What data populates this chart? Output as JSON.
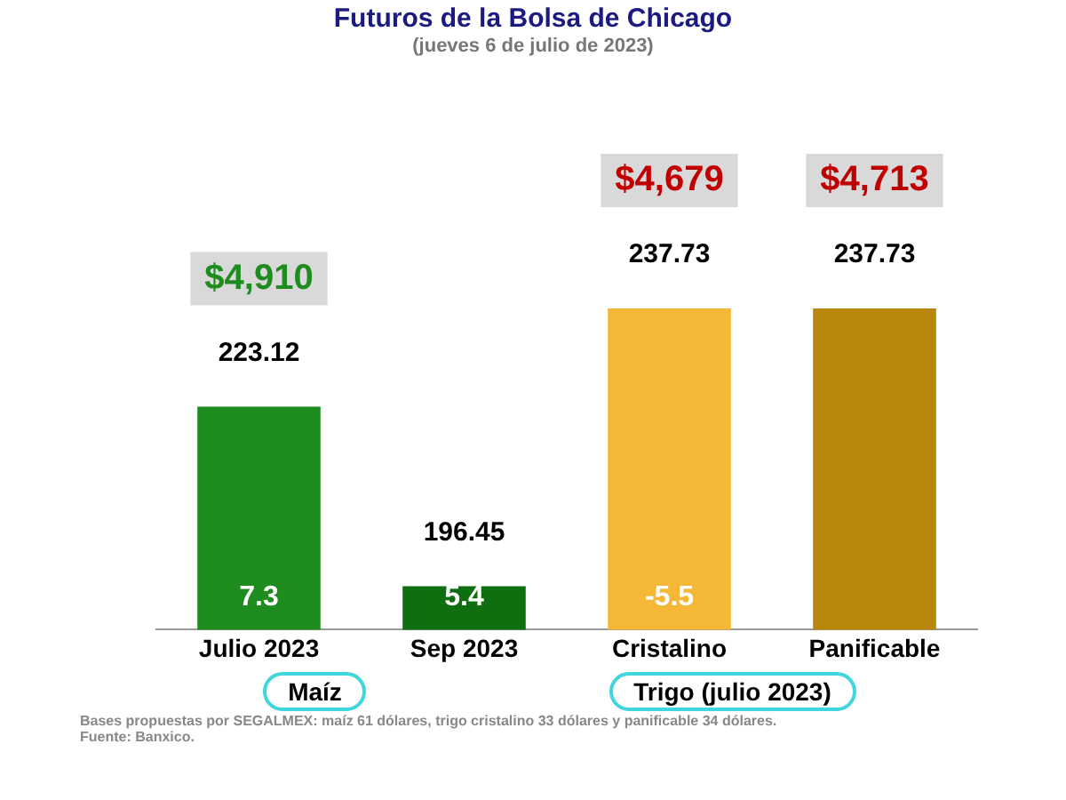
{
  "chart_data": {
    "type": "bar",
    "title": "Futuros de la Bolsa de Chicago",
    "subtitle": "(jueves 6 de julio de 2023)",
    "categories": [
      "Julio 2023",
      "Sep 2023",
      "Cristalino",
      "Panificable"
    ],
    "values": [
      223.12,
      196.45,
      237.73,
      237.73
    ],
    "colors": [
      "#1e8c1e",
      "#0f6e0f",
      "#f5b836",
      "#b8860b"
    ],
    "tick_labels": "x",
    "grid": false,
    "legend": false,
    "data_labels": true,
    "annotations": [
      "$4,910",
      "$4,679",
      "$4,713",
      "7.3",
      "5.4",
      "-5.5",
      "Maíz",
      "Trigo (julio 2023)",
      "Bases propuestas por SEGALMEX: maíz 61 dólares, trigo cristalino 33 dólares y panificable 34 dólares.",
      "Fuente: Banxico."
    ]
  }
}
